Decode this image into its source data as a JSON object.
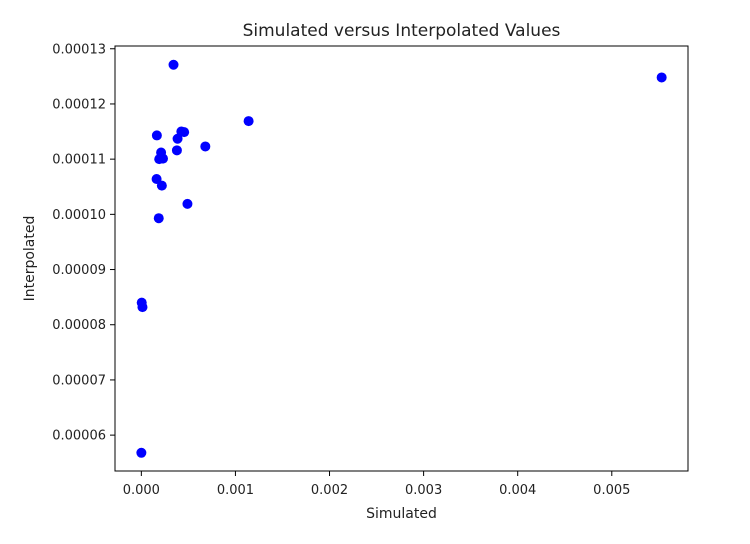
{
  "chart_data": {
    "type": "scatter",
    "title": "Simulated versus Interpolated Values",
    "xlabel": "Simulated",
    "ylabel": "Interpolated",
    "xlim": [
      -0.00028,
      0.00581
    ],
    "ylim": [
      5.35e-05,
      0.0001305
    ],
    "grid": false,
    "xticks": [
      0.0,
      0.001,
      0.002,
      0.003,
      0.004,
      0.005
    ],
    "xtick_labels": [
      "0.000",
      "0.001",
      "0.002",
      "0.003",
      "0.004",
      "0.005"
    ],
    "yticks": [
      6e-05,
      7e-05,
      8e-05,
      9e-05,
      0.0001,
      0.00011,
      0.00012,
      0.00013
    ],
    "ytick_labels": [
      "0.00006",
      "0.00007",
      "0.00008",
      "0.00009",
      "0.00010",
      "0.00011",
      "0.00012",
      "0.00013"
    ],
    "marker_color": "#0000ff",
    "points": [
      {
        "x": 1e-07,
        "y": 5.68e-05
      },
      {
        "x": 4e-06,
        "y": 8.4e-05
      },
      {
        "x": 1.2e-05,
        "y": 8.32e-05
      },
      {
        "x": 0.000162,
        "y": 0.0001064
      },
      {
        "x": 0.000165,
        "y": 0.0001143
      },
      {
        "x": 0.000185,
        "y": 9.93e-05
      },
      {
        "x": 0.00019,
        "y": 0.00011
      },
      {
        "x": 0.00021,
        "y": 0.0001112
      },
      {
        "x": 0.000218,
        "y": 0.0001052
      },
      {
        "x": 0.00023,
        "y": 0.0001101
      },
      {
        "x": 0.000342,
        "y": 0.0001271
      },
      {
        "x": 0.000378,
        "y": 0.0001116
      },
      {
        "x": 0.000385,
        "y": 0.0001137
      },
      {
        "x": 0.000425,
        "y": 0.000115
      },
      {
        "x": 0.000455,
        "y": 0.0001149
      },
      {
        "x": 0.00049,
        "y": 0.0001019
      },
      {
        "x": 0.00068,
        "y": 0.0001123
      },
      {
        "x": 0.00114,
        "y": 0.0001169
      },
      {
        "x": 0.00553,
        "y": 0.0001248
      }
    ]
  }
}
